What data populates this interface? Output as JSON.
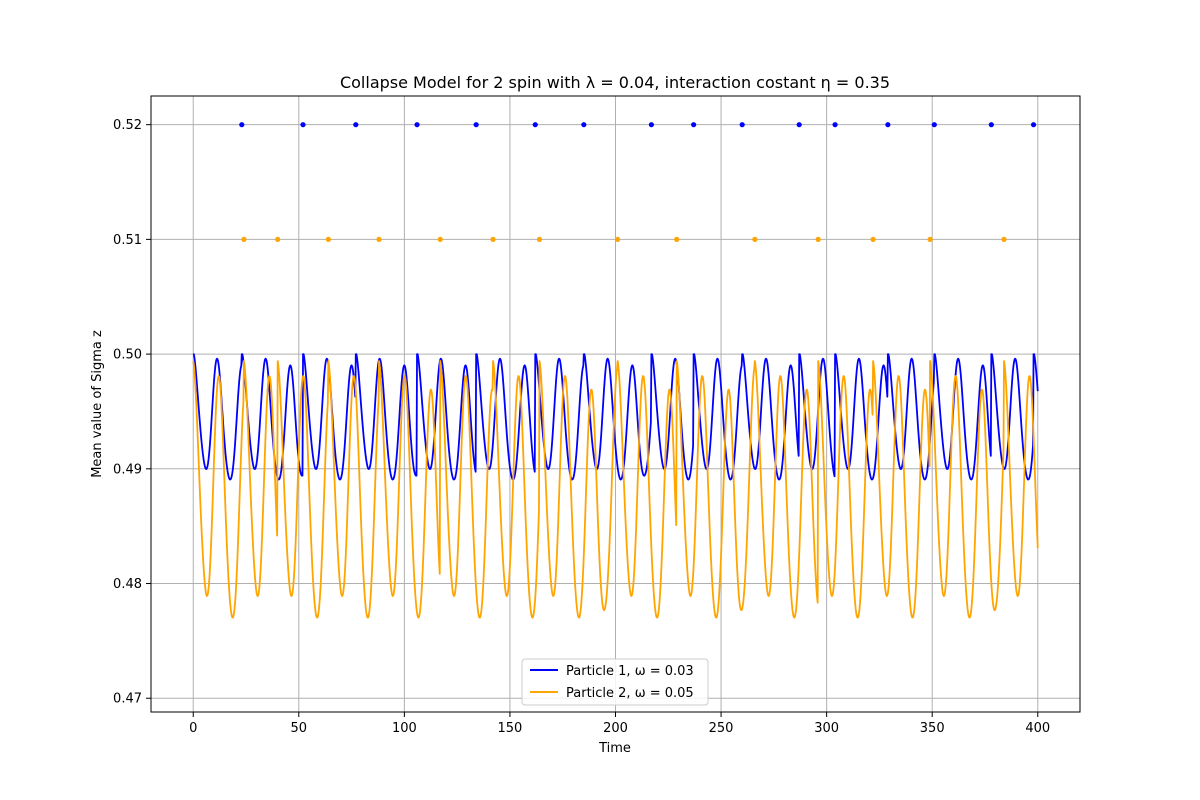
{
  "chart_data": {
    "type": "line",
    "title": "Collapse Model for 2 spin with λ = 0.04, interaction costant η = 0.35",
    "xlabel": "Time",
    "ylabel": "Mean value of Sigma z",
    "xlim": [
      -20,
      420
    ],
    "ylim": [
      0.4688,
      0.5225
    ],
    "xticks": [
      0,
      50,
      100,
      150,
      200,
      250,
      300,
      350,
      400
    ],
    "xtick_labels": [
      "0",
      "50",
      "100",
      "150",
      "200",
      "250",
      "300",
      "350",
      "400"
    ],
    "yticks": [
      0.47,
      0.48,
      0.49,
      0.5,
      0.51,
      0.52
    ],
    "ytick_labels": [
      "0.47",
      "0.48",
      "0.49",
      "0.50",
      "0.51",
      "0.52"
    ],
    "grid": true,
    "legend_position": "lower center",
    "colors": {
      "series1": "#0000ff",
      "series2": "#ffa500",
      "grid": "#b0b0b0"
    },
    "series": [
      {
        "name": "Particle 1, ω = 0.03",
        "color": "#0000ff",
        "x_range": [
          0,
          400
        ],
        "baseline": 0.495,
        "oscillation_amplitude": 0.005,
        "oscillation_period": 11.5,
        "collapse_times": [
          23,
          52,
          77,
          106,
          134,
          162,
          185,
          217,
          237,
          260,
          287,
          304,
          329,
          351,
          378,
          398
        ],
        "collapse_marker_y": 0.52
      },
      {
        "name": "Particle 2, ω = 0.05",
        "color": "#ffa500",
        "x_range": [
          0,
          400
        ],
        "baseline": 0.489,
        "oscillation_amplitude": 0.01,
        "oscillation_period": 12.3,
        "collapse_times": [
          24,
          40,
          64,
          88,
          117,
          142,
          164,
          201,
          229,
          266,
          296,
          322,
          349,
          384
        ],
        "collapse_marker_y": 0.51
      }
    ]
  }
}
